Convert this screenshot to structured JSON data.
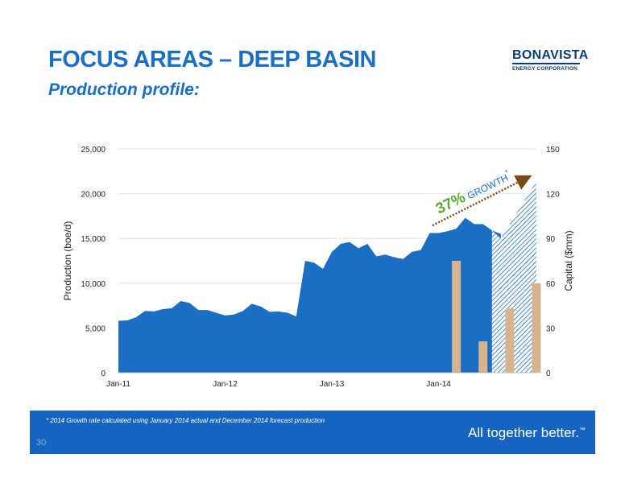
{
  "header": {
    "title": "FOCUS AREAS – DEEP BASIN",
    "subtitle": "Production profile:"
  },
  "logo": {
    "name": "BONAVISTA",
    "sub": "ENERGY CORPORATION"
  },
  "footer": {
    "footnote": "* 2014 Growth rate calculated using January 2014 actual and December 2014 forecast production",
    "page_number": "30",
    "tagline": "All together better.",
    "trademark": "™"
  },
  "colors": {
    "production": "#1a6fc4",
    "capital": "#d8b48e",
    "growth_text": "#5aa832",
    "growth_arrow": "#7a4a16",
    "title": "#1a6fc4",
    "footer_bg": "#1565c0"
  },
  "chart_data": {
    "type": "area",
    "ylabel": "Production (boe/d)",
    "y2label": "Capital ($mm)",
    "ylim": [
      0,
      25000
    ],
    "y2lim": [
      0,
      150
    ],
    "yticks": [
      0,
      5000,
      10000,
      15000,
      20000,
      25000
    ],
    "yticklabels": [
      "0",
      "5,000",
      "10,000",
      "15,000",
      "20,000",
      "25,000"
    ],
    "y2ticks": [
      0,
      30,
      60,
      90,
      120,
      150
    ],
    "y2ticklabels": [
      "0",
      "30",
      "60",
      "90",
      "120",
      "150"
    ],
    "xticks": [
      {
        "month": 0,
        "label": "Jan-11"
      },
      {
        "month": 12,
        "label": "Jan-12"
      },
      {
        "month": 24,
        "label": "Jan-13"
      },
      {
        "month": 36,
        "label": "Jan-14"
      }
    ],
    "grid": true,
    "annotation": {
      "value": "37%",
      "text": "GROWTH",
      "mark": "*"
    },
    "series": [
      {
        "style": "solid-area",
        "axis": "left",
        "months": [
          0,
          1,
          2,
          3,
          4,
          5,
          6,
          7,
          8,
          9,
          10,
          11,
          12,
          13,
          14,
          15,
          16,
          17,
          18,
          19,
          20,
          21,
          22,
          23,
          24,
          25,
          26,
          27,
          28,
          29,
          30,
          31,
          32,
          33,
          34,
          35,
          36,
          37,
          38,
          39,
          40,
          41,
          42,
          43
        ],
        "values": [
          5800,
          5850,
          6200,
          6900,
          6850,
          7100,
          7200,
          8000,
          7800,
          7000,
          7000,
          6700,
          6400,
          6500,
          6900,
          7700,
          7400,
          6800,
          6850,
          6700,
          6300,
          12500,
          12300,
          11600,
          13500,
          14400,
          14600,
          13900,
          14400,
          13000,
          13200,
          12900,
          12700,
          13500,
          13700,
          15600,
          15600,
          15800,
          16100,
          17300,
          16600,
          16600,
          15900,
          15500
        ]
      },
      {
        "style": "hatched-area",
        "axis": "left",
        "months": [
          42,
          43,
          44,
          45,
          46,
          47
        ],
        "values": [
          15900,
          15000,
          16600,
          18200,
          19800,
          21400
        ]
      },
      {
        "style": "bar",
        "axis": "right",
        "months": [
          38,
          41,
          44,
          47
        ],
        "values": [
          75,
          21,
          43,
          60
        ]
      }
    ]
  }
}
